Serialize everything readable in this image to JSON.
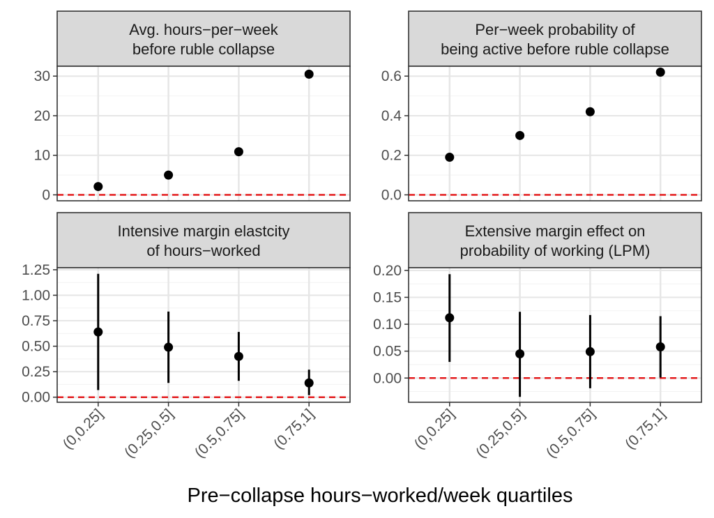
{
  "chart_data": {
    "type": "scatter",
    "xlabel": "Pre−collapse hours−worked/week quartiles",
    "categories": [
      "(0,0.25]",
      "(0.25,0.5]",
      "(0.5,0.75]",
      "(0.75,1]"
    ],
    "reference_line": {
      "y": 0,
      "color": "#e31a1c",
      "style": "dashed"
    },
    "panels": [
      {
        "title_lines": [
          "Avg. hours−per−week",
          "before ruble collapse"
        ],
        "ylim": [
          -1.5,
          32.5
        ],
        "yticks": [
          0,
          10,
          20,
          30
        ],
        "ytick_labels": [
          "0",
          "10",
          "20",
          "30"
        ],
        "values": [
          2.1,
          5.0,
          10.9,
          30.5
        ],
        "ci_low": null,
        "ci_high": null
      },
      {
        "title_lines": [
          "Per−week probability of",
          "being active before ruble collapse"
        ],
        "ylim": [
          -0.03,
          0.65
        ],
        "yticks": [
          0,
          0.2,
          0.4,
          0.6
        ],
        "ytick_labels": [
          "0.0",
          "0.2",
          "0.4",
          "0.6"
        ],
        "values": [
          0.19,
          0.3,
          0.42,
          0.62
        ],
        "ci_low": null,
        "ci_high": null
      },
      {
        "title_lines": [
          "Intensive margin elastcity",
          "of hours−worked"
        ],
        "ylim": [
          -0.05,
          1.27
        ],
        "yticks": [
          0,
          0.25,
          0.5,
          0.75,
          1.0,
          1.25
        ],
        "ytick_labels": [
          "0.00",
          "0.25",
          "0.50",
          "0.75",
          "1.00",
          "1.25"
        ],
        "values": [
          0.64,
          0.49,
          0.4,
          0.14
        ],
        "ci_low": [
          0.07,
          0.14,
          0.16,
          0.02
        ],
        "ci_high": [
          1.21,
          0.84,
          0.64,
          0.27
        ]
      },
      {
        "title_lines": [
          "Extensive margin effect on",
          "probability of working (LPM)"
        ],
        "ylim": [
          -0.045,
          0.205
        ],
        "yticks": [
          0,
          0.05,
          0.1,
          0.15,
          0.2
        ],
        "ytick_labels": [
          "0.00",
          "0.05",
          "0.10",
          "0.15",
          "0.20"
        ],
        "values": [
          0.112,
          0.045,
          0.049,
          0.058
        ],
        "ci_low": [
          0.03,
          -0.035,
          -0.019,
          0.001
        ],
        "ci_high": [
          0.193,
          0.123,
          0.117,
          0.115
        ]
      }
    ]
  }
}
